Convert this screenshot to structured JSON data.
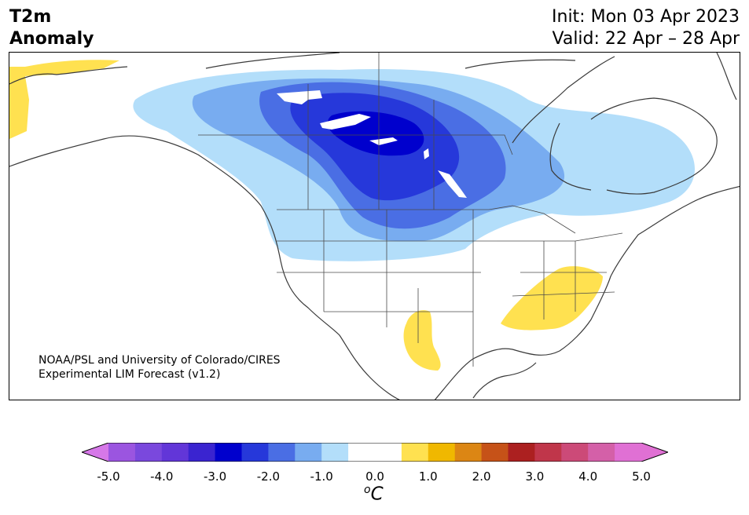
{
  "title": {
    "left_line1": "T2m",
    "left_line2": "Anomaly",
    "right_line1": "Init: Mon 03 Apr 2023",
    "right_line2": "Valid: 22 Apr – 28 Apr"
  },
  "credit": {
    "line1": "NOAA/PSL and University of Colorado/CIRES",
    "line2": "Experimental LIM Forecast (v1.2)"
  },
  "colorbar": {
    "unit_base": "C",
    "unit_sup": "o",
    "ticks": [
      "-5.0",
      "-4.0",
      "-3.0",
      "-2.0",
      "-1.0",
      "0.0",
      "1.0",
      "2.0",
      "3.0",
      "4.0",
      "5.0"
    ],
    "bins": [
      {
        "range": "< -5.0",
        "color": "#d678e8"
      },
      {
        "range": "-5.0 to -4.5",
        "color": "#9b55e0"
      },
      {
        "range": "-4.5 to -4.0",
        "color": "#7a48dd"
      },
      {
        "range": "-4.0 to -3.5",
        "color": "#6236d8"
      },
      {
        "range": "-3.5 to -3.0",
        "color": "#3a24d0"
      },
      {
        "range": "-3.0 to -2.5",
        "color": "#0000cd"
      },
      {
        "range": "-2.5 to -2.0",
        "color": "#2638da"
      },
      {
        "range": "-2.0 to -1.5",
        "color": "#4a6ee4"
      },
      {
        "range": "-1.5 to -1.0",
        "color": "#78acf0"
      },
      {
        "range": "-1.0 to -0.5",
        "color": "#b3defa"
      },
      {
        "range": "-0.5 to 0.0",
        "color": "#ffffff"
      },
      {
        "range": "0.0 to 0.5",
        "color": "#ffffff"
      },
      {
        "range": "0.5 to 1.0",
        "color": "#ffe150"
      },
      {
        "range": "1.0 to 1.5",
        "color": "#f0b800"
      },
      {
        "range": "1.5 to 2.0",
        "color": "#dc8614"
      },
      {
        "range": "2.0 to 2.5",
        "color": "#c65218"
      },
      {
        "range": "2.5 to 3.0",
        "color": "#ac2020"
      },
      {
        "range": "3.0 to 3.5",
        "color": "#c0364a"
      },
      {
        "range": "3.5 to 4.0",
        "color": "#cc4a78"
      },
      {
        "range": "4.0 to 4.5",
        "color": "#d460a8"
      },
      {
        "range": "4.5 to 5.0",
        "color": "#e070d4"
      },
      {
        "range": "> 5.0",
        "color": "#e070d4"
      }
    ]
  },
  "map": {
    "region": "North America",
    "field": "2-meter temperature anomaly",
    "anomaly_regions": [
      {
        "area": "Alaska west coast",
        "level": "0.5 to 1.0"
      },
      {
        "area": "Southeast US (Tennessee, Carolinas, Georgia, Alabama)",
        "level": "0.5 to 1.0"
      },
      {
        "area": "West Texas / New Mexico border",
        "level": "0.5 to 1.0"
      },
      {
        "area": "Central Canadian Prairies (Manitoba/Saskatchewan)",
        "level": "-3.0 to -2.5"
      },
      {
        "area": "Northern Great Plains / Western Canada",
        "level": "-2.0 to -1.0"
      },
      {
        "area": "Eastern Canada / Great Lakes",
        "level": "-1.0 to -0.5"
      }
    ]
  }
}
